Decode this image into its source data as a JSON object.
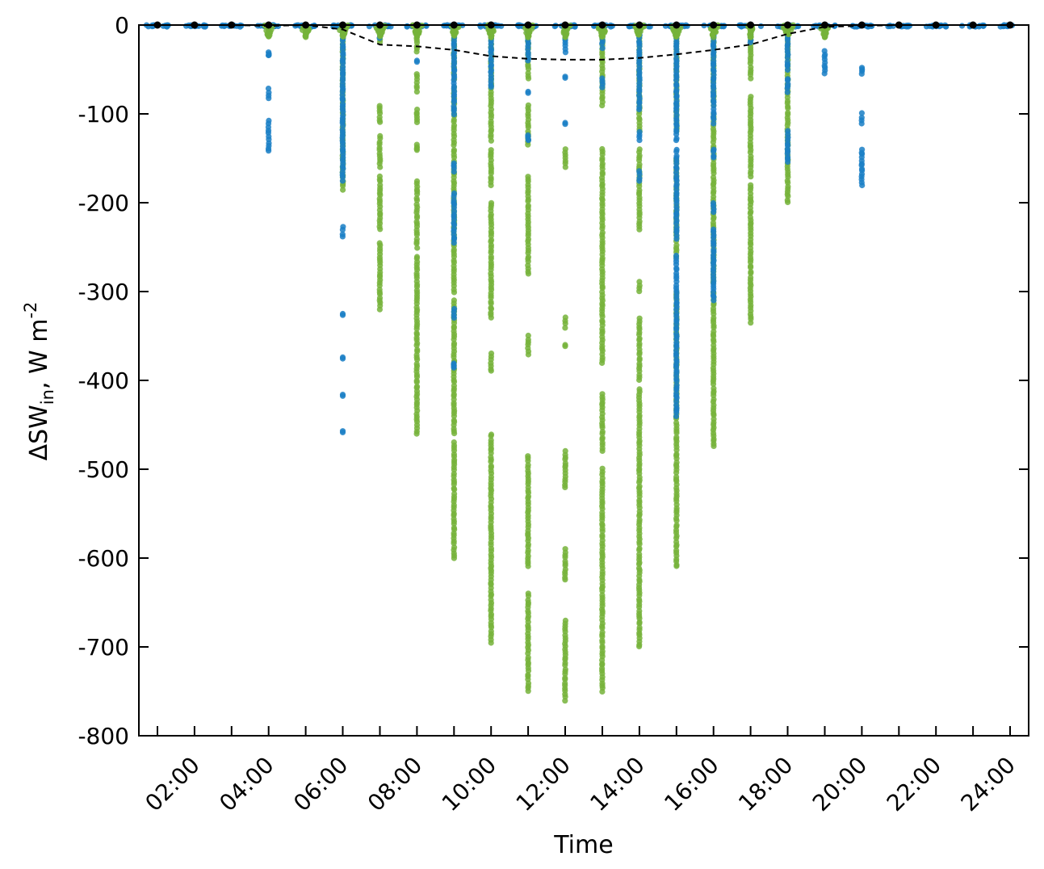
{
  "chart_data": {
    "type": "scatter",
    "title": "",
    "xlabel": "Time",
    "ylabel_main": "ΔSW",
    "ylabel_sub": "in",
    "ylabel_unit": ", W m",
    "ylabel_sup": "-2",
    "xlim": [
      0.5,
      24.5
    ],
    "ylim": [
      -800,
      0
    ],
    "grid": false,
    "legend": "none",
    "y_ticks": [
      0,
      -100,
      -200,
      -300,
      -400,
      -500,
      -600,
      -700,
      -800
    ],
    "y_tick_labels": [
      "0",
      "-100",
      "-200",
      "-300",
      "-400",
      "-500",
      "-600",
      "-700",
      "-800"
    ],
    "x_ticks": [
      1,
      2,
      3,
      4,
      5,
      6,
      7,
      8,
      9,
      10,
      11,
      12,
      13,
      14,
      15,
      16,
      17,
      18,
      19,
      20,
      21,
      22,
      23,
      24
    ],
    "x_tick_labels": [
      {
        "x": 2,
        "label": "02:00"
      },
      {
        "x": 4,
        "label": "04:00"
      },
      {
        "x": 6,
        "label": "06:00"
      },
      {
        "x": 8,
        "label": "08:00"
      },
      {
        "x": 10,
        "label": "10:00"
      },
      {
        "x": 12,
        "label": "12:00"
      },
      {
        "x": 14,
        "label": "14:00"
      },
      {
        "x": 16,
        "label": "16:00"
      },
      {
        "x": 18,
        "label": "18:00"
      },
      {
        "x": 20,
        "label": "20:00"
      },
      {
        "x": 22,
        "label": "22:00"
      },
      {
        "x": 24,
        "label": "24:00"
      }
    ],
    "colors": {
      "green": "#76b33a",
      "blue": "#1a7fc6",
      "black": "#000000",
      "mean_line": "#000000"
    },
    "mean_line": {
      "x": [
        1,
        2,
        3,
        4,
        5,
        6,
        7,
        8,
        9,
        10,
        11,
        12,
        13,
        14,
        15,
        16,
        17,
        18,
        19,
        20,
        21,
        22,
        23,
        24
      ],
      "y": [
        0,
        0,
        0,
        -1,
        0,
        -5,
        -22,
        -24,
        -28,
        -35,
        -38,
        -39,
        -39,
        -37,
        -33,
        -28,
        -22,
        -10,
        -2,
        -1,
        0,
        0,
        0,
        0
      ]
    },
    "series": [
      {
        "x": 4,
        "green": [
          [
            -2,
            -8
          ]
        ],
        "blue": [
          [
            -30,
            -35
          ],
          [
            -72,
            -82
          ],
          [
            -108,
            -122
          ],
          [
            -126,
            -142
          ]
        ]
      },
      {
        "x": 5,
        "green": [
          [
            -2,
            -12
          ]
        ],
        "blue": []
      },
      {
        "x": 6,
        "green": [
          [
            -2,
            -185
          ]
        ],
        "blue": [
          [
            -5,
            -175
          ],
          [
            -228,
            -238
          ],
          [
            -325
          ],
          [
            -374
          ],
          [
            -416
          ],
          [
            -457
          ]
        ]
      },
      {
        "x": 7,
        "green": [
          [
            -5,
            -20
          ],
          [
            -90,
            -110
          ],
          [
            -125,
            -160
          ],
          [
            -170,
            -230
          ],
          [
            -245,
            -320
          ]
        ],
        "blue": [
          [
            -5,
            -15
          ]
        ]
      },
      {
        "x": 8,
        "green": [
          [
            -5,
            -30
          ],
          [
            -55,
            -75
          ],
          [
            -95,
            -110
          ],
          [
            -135,
            -140
          ],
          [
            -175,
            -250
          ],
          [
            -260,
            -460
          ]
        ],
        "blue": [
          [
            -40
          ]
        ]
      },
      {
        "x": 9,
        "green": [
          [
            -5,
            -60
          ],
          [
            -70,
            -135
          ],
          [
            -140,
            -300
          ],
          [
            -310,
            -460
          ],
          [
            -470,
            -600
          ]
        ],
        "blue": [
          [
            -5,
            -100
          ],
          [
            -155,
            -165
          ],
          [
            -190,
            -245
          ],
          [
            -320,
            -330
          ],
          [
            -380,
            -385
          ]
        ]
      },
      {
        "x": 10,
        "green": [
          [
            -5,
            -130
          ],
          [
            -140,
            -180
          ],
          [
            -200,
            -330
          ],
          [
            -370,
            -390
          ],
          [
            -460,
            -695
          ]
        ],
        "blue": [
          [
            -5,
            -70
          ]
        ]
      },
      {
        "x": 11,
        "green": [
          [
            -5,
            -60
          ],
          [
            -90,
            -135
          ],
          [
            -170,
            -280
          ],
          [
            -350,
            -370
          ],
          [
            -485,
            -610
          ],
          [
            -640,
            -750
          ]
        ],
        "blue": [
          [
            -5,
            -40
          ],
          [
            -75
          ],
          [
            -125,
            -130
          ]
        ]
      },
      {
        "x": 12,
        "green": [
          [
            -140,
            -160
          ],
          [
            -330,
            -340
          ],
          [
            -360
          ],
          [
            -480,
            -520
          ],
          [
            -590,
            -625
          ],
          [
            -670,
            -760
          ]
        ],
        "blue": [
          [
            -5,
            -30
          ],
          [
            -58
          ],
          [
            -110
          ]
        ]
      },
      {
        "x": 13,
        "green": [
          [
            -5,
            -90
          ],
          [
            -140,
            -380
          ],
          [
            -415,
            -480
          ],
          [
            -500,
            -750
          ]
        ],
        "blue": [
          [
            -5,
            -25
          ],
          [
            -60,
            -70
          ]
        ]
      },
      {
        "x": 14,
        "green": [
          [
            -5,
            -120
          ],
          [
            -140,
            -230
          ],
          [
            -290,
            -300
          ],
          [
            -330,
            -400
          ],
          [
            -410,
            -700
          ]
        ],
        "blue": [
          [
            -5,
            -95
          ],
          [
            -120,
            -130
          ],
          [
            -165,
            -175
          ]
        ]
      },
      {
        "x": 15,
        "green": [
          [
            -5,
            -120
          ],
          [
            -150,
            -260
          ],
          [
            -300,
            -610
          ]
        ],
        "blue": [
          [
            -5,
            -130
          ],
          [
            -140,
            -240
          ],
          [
            -260,
            -440
          ]
        ]
      },
      {
        "x": 16,
        "green": [
          [
            -5,
            -90
          ],
          [
            -100,
            -290
          ],
          [
            -300,
            -475
          ]
        ],
        "blue": [
          [
            -5,
            -110
          ],
          [
            -140,
            -150
          ],
          [
            -200,
            -210
          ],
          [
            -230,
            -310
          ]
        ]
      },
      {
        "x": 17,
        "green": [
          [
            -5,
            -60
          ],
          [
            -80,
            -170
          ],
          [
            -180,
            -335
          ]
        ],
        "blue": [
          [
            -5,
            -20
          ]
        ]
      },
      {
        "x": 18,
        "green": [
          [
            -5,
            -200
          ]
        ],
        "blue": [
          [
            -5,
            -50
          ],
          [
            -60,
            -75
          ],
          [
            -120,
            -155
          ]
        ]
      },
      {
        "x": 19,
        "green": [
          [
            -2,
            -8
          ]
        ],
        "blue": [
          [
            -30,
            -55
          ]
        ]
      },
      {
        "x": 20,
        "green": [],
        "blue": [
          [
            -48,
            -55
          ],
          [
            -100,
            -110
          ],
          [
            -140,
            -180
          ]
        ]
      }
    ]
  }
}
